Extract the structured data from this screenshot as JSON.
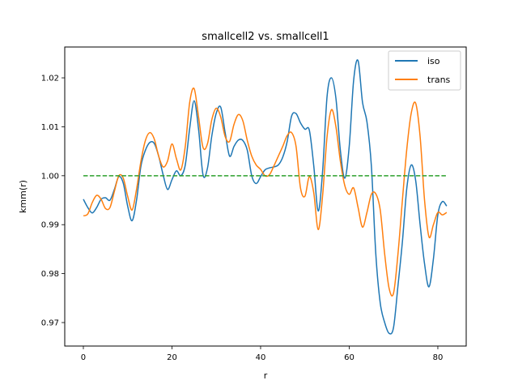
{
  "chart_data": {
    "type": "line",
    "title": "smallcell2 vs. smallcell1",
    "xlabel": "r",
    "ylabel": "kmm(r)",
    "xlim": [
      -4.2,
      86.4
    ],
    "ylim": [
      0.9652,
      1.0263
    ],
    "xticks": [
      0,
      20,
      40,
      60,
      80
    ],
    "yticks": [
      0.97,
      0.98,
      0.99,
      1.0,
      1.01,
      1.02
    ],
    "ytick_labels": [
      "0.97",
      "0.98",
      "0.99",
      "1.00",
      "1.01",
      "1.02"
    ],
    "grid": false,
    "legend": {
      "position": "top-right",
      "entries": [
        "iso",
        "trans"
      ]
    },
    "series": [
      {
        "name": "iso",
        "color": "#1f77b4",
        "style": "solid",
        "x": [
          0,
          1,
          2,
          3,
          4,
          5,
          6,
          7,
          8,
          9,
          10,
          11,
          12,
          13,
          14,
          15,
          16,
          17,
          18,
          19,
          20,
          21,
          22,
          23,
          24,
          25,
          26,
          27,
          28,
          29,
          30,
          31,
          32,
          33,
          34,
          35,
          36,
          37,
          38,
          39,
          40,
          41,
          42,
          43,
          44,
          45,
          46,
          47,
          48,
          49,
          50,
          51,
          52,
          53,
          54,
          55,
          56,
          57,
          58,
          59,
          60,
          61,
          62,
          63,
          64,
          65,
          66,
          67,
          68,
          69,
          70,
          71,
          72,
          73,
          74,
          75,
          76,
          77,
          78,
          79,
          80,
          81,
          82
        ],
        "y": [
          0.9952,
          0.9935,
          0.9924,
          0.9935,
          0.9952,
          0.9955,
          0.995,
          0.9972,
          0.9998,
          0.9985,
          0.9938,
          0.9908,
          0.995,
          1.002,
          1.0052,
          1.0068,
          1.0066,
          1.004,
          1.0002,
          0.9972,
          0.9992,
          1.001,
          1.0,
          1.0022,
          1.0097,
          1.0153,
          1.0095,
          1.0002,
          1.0015,
          1.0082,
          1.0128,
          1.014,
          1.0088,
          1.004,
          1.006,
          1.0073,
          1.0072,
          1.0052,
          1.0,
          0.9984,
          0.9998,
          1.0012,
          1.0016,
          1.0018,
          1.0022,
          1.0038,
          1.007,
          1.0122,
          1.0127,
          1.0108,
          1.0095,
          1.0093,
          1.002,
          0.9928,
          1.001,
          1.0162,
          1.02,
          1.0158,
          1.0052,
          0.9995,
          1.006,
          1.0195,
          1.0235,
          1.015,
          1.011,
          1.002,
          0.984,
          0.974,
          0.97,
          0.9678,
          0.969,
          0.9775,
          0.9865,
          0.9975,
          1.0022,
          0.999,
          0.99,
          0.982,
          0.9773,
          0.983,
          0.992,
          0.9947,
          0.9938
        ]
      },
      {
        "name": "trans",
        "color": "#ff7f0e",
        "style": "solid",
        "x": [
          0,
          1,
          2,
          3,
          4,
          5,
          6,
          7,
          8,
          9,
          10,
          11,
          12,
          13,
          14,
          15,
          16,
          17,
          18,
          19,
          20,
          21,
          22,
          23,
          24,
          25,
          26,
          27,
          28,
          29,
          30,
          31,
          32,
          33,
          34,
          35,
          36,
          37,
          38,
          39,
          40,
          41,
          42,
          43,
          44,
          45,
          46,
          47,
          48,
          49,
          50,
          51,
          52,
          53,
          54,
          55,
          56,
          57,
          58,
          59,
          60,
          61,
          62,
          63,
          64,
          65,
          66,
          67,
          68,
          69,
          70,
          71,
          72,
          73,
          74,
          75,
          76,
          77,
          78,
          79,
          80,
          81,
          82
        ],
        "y": [
          0.9918,
          0.9922,
          0.9945,
          0.996,
          0.9952,
          0.9933,
          0.9935,
          0.9968,
          1.0,
          0.9995,
          0.9958,
          0.993,
          0.9972,
          1.003,
          1.0072,
          1.0088,
          1.0075,
          1.004,
          1.0018,
          1.003,
          1.0065,
          1.0035,
          1.0012,
          1.006,
          1.015,
          1.0178,
          1.012,
          1.0058,
          1.0065,
          1.0115,
          1.0138,
          1.012,
          1.008,
          1.007,
          1.0105,
          1.0125,
          1.0112,
          1.0072,
          1.004,
          1.0022,
          1.0013,
          1.0,
          1.0002,
          1.002,
          1.004,
          1.006,
          1.0082,
          1.0088,
          1.006,
          0.9975,
          0.9958,
          0.9998,
          0.9965,
          0.989,
          0.996,
          1.008,
          1.0135,
          1.01,
          1.003,
          0.998,
          0.9962,
          0.9975,
          0.9935,
          0.9895,
          0.9925,
          0.9962,
          0.9963,
          0.993,
          0.984,
          0.977,
          0.976,
          0.984,
          0.995,
          1.0055,
          1.0128,
          1.0148,
          1.008,
          0.995,
          0.9875,
          0.99,
          0.9925,
          0.992,
          0.9925
        ]
      },
      {
        "name": "",
        "color": "#2ca02c",
        "style": "dashed",
        "x": [
          0,
          82
        ],
        "y": [
          1.0,
          1.0
        ]
      }
    ]
  }
}
